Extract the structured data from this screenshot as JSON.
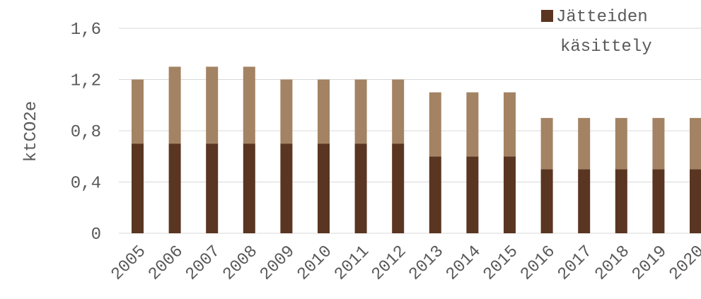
{
  "chart_data": {
    "type": "bar",
    "stacked": true,
    "categories": [
      "2005",
      "2006",
      "2007",
      "2008",
      "2009",
      "2010",
      "2011",
      "2012",
      "2013",
      "2014",
      "2015",
      "2016",
      "2017",
      "2018",
      "2019",
      "2020"
    ],
    "series": [
      {
        "name": "Jätteiden käsittely",
        "color": "#5a3521",
        "values": [
          0.7,
          0.7,
          0.7,
          0.7,
          0.7,
          0.7,
          0.7,
          0.7,
          0.6,
          0.6,
          0.6,
          0.5,
          0.5,
          0.5,
          0.5,
          0.5
        ]
      },
      {
        "name": "",
        "color": "#a38363",
        "values": [
          0.5,
          0.6,
          0.6,
          0.6,
          0.5,
          0.5,
          0.5,
          0.5,
          0.5,
          0.5,
          0.5,
          0.4,
          0.4,
          0.4,
          0.4,
          0.4
        ]
      }
    ],
    "ylabel": "ktCO2e",
    "xlabel": "",
    "ylim": [
      0,
      1.6
    ],
    "yticks": [
      "0",
      "0,4",
      "0,8",
      "1,2",
      "1,6"
    ],
    "ytick_values": [
      0,
      0.4,
      0.8,
      1.2,
      1.6
    ],
    "grid": true,
    "legend": {
      "position": "top-right",
      "label_lines": [
        "Jätteiden",
        "käsittely"
      ]
    }
  }
}
